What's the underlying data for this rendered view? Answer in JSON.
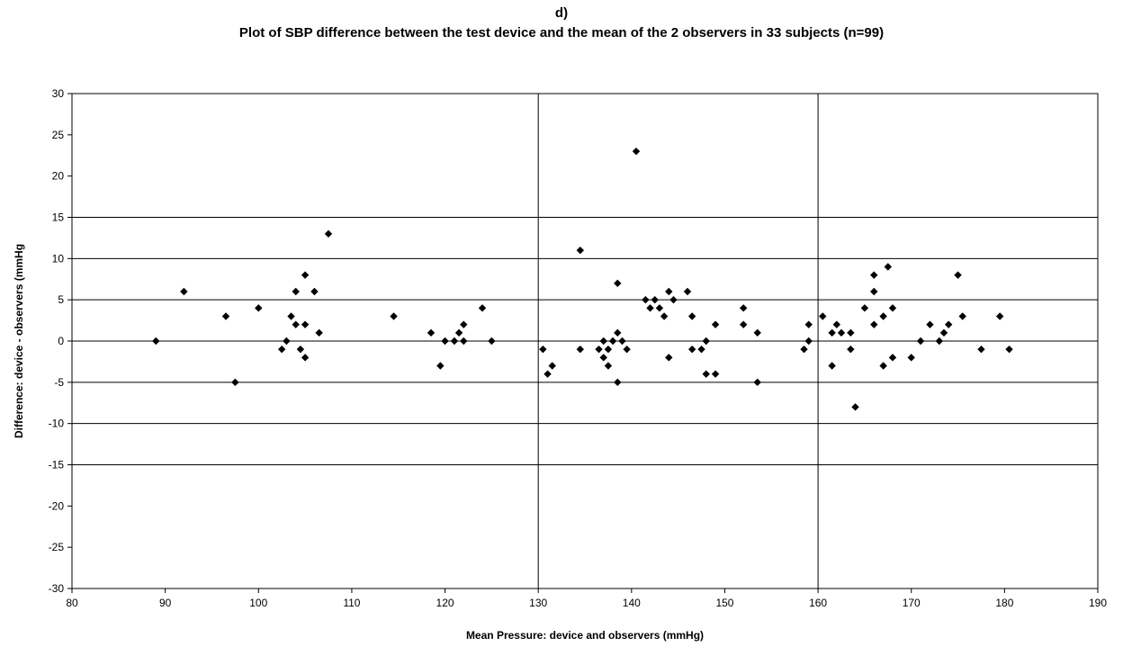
{
  "panel_label": "d)",
  "chart_data": {
    "type": "scatter",
    "title": "Plot of SBP difference between the test device and the mean of  the 2 observers in 33 subjects (n=99)",
    "xlabel": "Mean Pressure: device and observers (mmHg)",
    "ylabel": "Difference: device - observers (mmHg",
    "xlim": [
      80,
      190
    ],
    "ylim": [
      -30,
      30
    ],
    "xticks": [
      80,
      90,
      100,
      110,
      120,
      130,
      140,
      150,
      160,
      170,
      180,
      190
    ],
    "yticks": [
      30,
      25,
      20,
      15,
      10,
      5,
      0,
      -5,
      -10,
      -15,
      -20,
      -25,
      -30
    ],
    "horizontal_reference_lines": [
      15,
      10,
      5,
      0,
      -5,
      -10,
      -15
    ],
    "vertical_reference_lines": [
      130,
      160
    ],
    "marker": "diamond",
    "marker_color": "#000000",
    "points": [
      [
        89,
        0
      ],
      [
        92,
        6
      ],
      [
        96.5,
        3
      ],
      [
        97.5,
        -5
      ],
      [
        100,
        4
      ],
      [
        102.5,
        -1
      ],
      [
        103,
        0
      ],
      [
        103.5,
        3
      ],
      [
        104,
        6
      ],
      [
        104,
        2
      ],
      [
        104.5,
        -1
      ],
      [
        105,
        8
      ],
      [
        105,
        2
      ],
      [
        105,
        -2
      ],
      [
        106,
        6
      ],
      [
        106.5,
        1
      ],
      [
        107.5,
        13
      ],
      [
        114.5,
        3
      ],
      [
        118.5,
        1
      ],
      [
        119.5,
        -3
      ],
      [
        120,
        0
      ],
      [
        121,
        0
      ],
      [
        121.5,
        1
      ],
      [
        122,
        2
      ],
      [
        122,
        0
      ],
      [
        124,
        4
      ],
      [
        125,
        0
      ],
      [
        130.5,
        -1
      ],
      [
        131,
        -4
      ],
      [
        131.5,
        -3
      ],
      [
        134.5,
        11
      ],
      [
        134.5,
        -1
      ],
      [
        136.5,
        -1
      ],
      [
        137,
        -2
      ],
      [
        137,
        0
      ],
      [
        137.5,
        -1
      ],
      [
        137.5,
        -3
      ],
      [
        138,
        0
      ],
      [
        138.5,
        7
      ],
      [
        138.5,
        1
      ],
      [
        138.5,
        -5
      ],
      [
        139,
        0
      ],
      [
        139.5,
        -1
      ],
      [
        140.5,
        23
      ],
      [
        141.5,
        5
      ],
      [
        142,
        4
      ],
      [
        142.5,
        5
      ],
      [
        143,
        4
      ],
      [
        143.5,
        3
      ],
      [
        144,
        6
      ],
      [
        144,
        -2
      ],
      [
        144.5,
        5
      ],
      [
        146,
        6
      ],
      [
        146.5,
        3
      ],
      [
        146.5,
        -1
      ],
      [
        147.5,
        -1
      ],
      [
        148,
        0
      ],
      [
        148,
        -4
      ],
      [
        149,
        2
      ],
      [
        149,
        -4
      ],
      [
        152,
        4
      ],
      [
        152,
        2
      ],
      [
        153.5,
        1
      ],
      [
        153.5,
        -5
      ],
      [
        158.5,
        -1
      ],
      [
        159,
        2
      ],
      [
        159,
        0
      ],
      [
        160.5,
        3
      ],
      [
        161.5,
        1
      ],
      [
        161.5,
        -3
      ],
      [
        162,
        2
      ],
      [
        162.5,
        1
      ],
      [
        163.5,
        1
      ],
      [
        163.5,
        -1
      ],
      [
        164,
        -8
      ],
      [
        165,
        4
      ],
      [
        166,
        8
      ],
      [
        166,
        6
      ],
      [
        166,
        2
      ],
      [
        167,
        3
      ],
      [
        167,
        -3
      ],
      [
        167.5,
        9
      ],
      [
        168,
        4
      ],
      [
        168,
        -2
      ],
      [
        170,
        -2
      ],
      [
        171,
        0
      ],
      [
        172,
        2
      ],
      [
        173,
        0
      ],
      [
        173.5,
        1
      ],
      [
        174,
        2
      ],
      [
        175,
        8
      ],
      [
        175.5,
        3
      ],
      [
        177.5,
        -1
      ],
      [
        179.5,
        3
      ],
      [
        180.5,
        -1
      ]
    ]
  }
}
